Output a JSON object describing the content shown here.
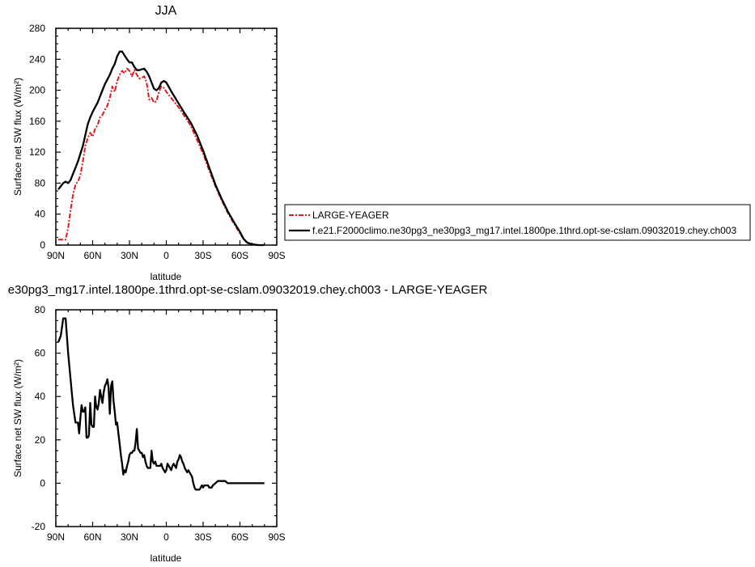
{
  "chart_data": [
    {
      "type": "line",
      "title": "JJA",
      "xlabel": "latitude",
      "ylabel": "Surface net SW flux (W/m²)",
      "xlim": [
        90,
        -90
      ],
      "ylim": [
        0,
        280
      ],
      "x_ticks": [
        90,
        60,
        30,
        0,
        -30,
        -60,
        -90
      ],
      "x_tick_labels": [
        "90N",
        "60N",
        "30N",
        "0",
        "30S",
        "60S",
        "90S"
      ],
      "y_ticks": [
        0,
        40,
        80,
        120,
        160,
        200,
        240,
        280
      ],
      "y_tick_labels": [
        "0",
        "40",
        "80",
        "120",
        "160",
        "200",
        "240",
        "280"
      ],
      "legend_position": "right",
      "series": [
        {
          "name": "LARGE-YEAGER",
          "color": "#e31a1c",
          "dash": "dash-dot",
          "points": [
            [
              88,
              7
            ],
            [
              82,
              7
            ],
            [
              80,
              22
            ],
            [
              78,
              45
            ],
            [
              76,
              65
            ],
            [
              74,
              78
            ],
            [
              72,
              82
            ],
            [
              70,
              90
            ],
            [
              68,
              108
            ],
            [
              66,
              128
            ],
            [
              64,
              138
            ],
            [
              62,
              145
            ],
            [
              60,
              140
            ],
            [
              58,
              150
            ],
            [
              56,
              155
            ],
            [
              54,
              165
            ],
            [
              52,
              168
            ],
            [
              50,
              175
            ],
            [
              48,
              180
            ],
            [
              46,
              190
            ],
            [
              44,
              205
            ],
            [
              42,
              198
            ],
            [
              40,
              212
            ],
            [
              38,
              220
            ],
            [
              36,
              225
            ],
            [
              34,
              222
            ],
            [
              32,
              228
            ],
            [
              30,
              225
            ],
            [
              28,
              218
            ],
            [
              26,
              226
            ],
            [
              24,
              220
            ],
            [
              22,
              215
            ],
            [
              20,
              216
            ],
            [
              18,
              218
            ],
            [
              16,
              210
            ],
            [
              14,
              188
            ],
            [
              12,
              190
            ],
            [
              10,
              184
            ],
            [
              8,
              186
            ],
            [
              6,
              198
            ],
            [
              4,
              205
            ],
            [
              2,
              203
            ],
            [
              0,
              198
            ],
            [
              -5,
              188
            ],
            [
              -10,
              178
            ],
            [
              -15,
              166
            ],
            [
              -20,
              154
            ],
            [
              -25,
              136
            ],
            [
              -30,
              118
            ],
            [
              -35,
              96
            ],
            [
              -40,
              76
            ],
            [
              -45,
              58
            ],
            [
              -50,
              42
            ],
            [
              -55,
              28
            ],
            [
              -60,
              15
            ],
            [
              -63,
              8
            ],
            [
              -66,
              3
            ],
            [
              -70,
              1
            ],
            [
              -75,
              0
            ],
            [
              -80,
              0
            ]
          ]
        },
        {
          "name": "f.e21.F2000climo.ne30pg3_ne30pg3_mg17.intel.1800pe.1thrd.opt-se-cslam.09032019.chey.ch003",
          "color": "#000000",
          "dash": "solid",
          "points": [
            [
              88,
              72
            ],
            [
              86,
              76
            ],
            [
              84,
              80
            ],
            [
              82,
              82
            ],
            [
              80,
              80
            ],
            [
              78,
              84
            ],
            [
              76,
              92
            ],
            [
              74,
              100
            ],
            [
              72,
              108
            ],
            [
              70,
              118
            ],
            [
              68,
              128
            ],
            [
              66,
              142
            ],
            [
              64,
              156
            ],
            [
              62,
              165
            ],
            [
              60,
              172
            ],
            [
              58,
              178
            ],
            [
              56,
              184
            ],
            [
              54,
              192
            ],
            [
              52,
              200
            ],
            [
              50,
              208
            ],
            [
              48,
              214
            ],
            [
              46,
              220
            ],
            [
              44,
              228
            ],
            [
              42,
              234
            ],
            [
              40,
              244
            ],
            [
              38,
              250
            ],
            [
              36,
              250
            ],
            [
              34,
              245
            ],
            [
              32,
              240
            ],
            [
              30,
              236
            ],
            [
              28,
              236
            ],
            [
              26,
              230
            ],
            [
              24,
              226
            ],
            [
              22,
              226
            ],
            [
              20,
              227
            ],
            [
              18,
              228
            ],
            [
              16,
              224
            ],
            [
              14,
              218
            ],
            [
              12,
              210
            ],
            [
              10,
              202
            ],
            [
              8,
              200
            ],
            [
              6,
              203
            ],
            [
              4,
              210
            ],
            [
              2,
              212
            ],
            [
              0,
              210
            ],
            [
              -5,
              196
            ],
            [
              -10,
              183
            ],
            [
              -15,
              170
            ],
            [
              -20,
              158
            ],
            [
              -25,
              142
            ],
            [
              -30,
              122
            ],
            [
              -35,
              100
            ],
            [
              -40,
              78
            ],
            [
              -45,
              60
            ],
            [
              -50,
              44
            ],
            [
              -55,
              30
            ],
            [
              -60,
              17
            ],
            [
              -63,
              8
            ],
            [
              -66,
              3
            ],
            [
              -70,
              1
            ],
            [
              -75,
              0
            ],
            [
              -80,
              0
            ]
          ]
        }
      ]
    },
    {
      "type": "line",
      "title": "e30pg3_mg17.intel.1800pe.1thrd.opt-se-cslam.09032019.chey.ch003 - LARGE-YEAGER",
      "xlabel": "latitude",
      "ylabel": "Surface net SW flux (W/m²)",
      "xlim": [
        90,
        -90
      ],
      "ylim": [
        -20,
        80
      ],
      "x_ticks": [
        90,
        60,
        30,
        0,
        -30,
        -60,
        -90
      ],
      "x_tick_labels": [
        "90N",
        "60N",
        "30N",
        "0",
        "30S",
        "60S",
        "90S"
      ],
      "y_ticks": [
        -20,
        0,
        20,
        40,
        60,
        80
      ],
      "y_tick_labels": [
        "-20",
        "0",
        "20",
        "40",
        "60",
        "80"
      ],
      "series": [
        {
          "color": "#000000",
          "dash": "solid",
          "points": [
            [
              88,
              65
            ],
            [
              86,
              68
            ],
            [
              84,
              76
            ],
            [
              82,
              76
            ],
            [
              80,
              60
            ],
            [
              78,
              48
            ],
            [
              76,
              36
            ],
            [
              74,
              28
            ],
            [
              72,
              28
            ],
            [
              71,
              23
            ],
            [
              70,
              30
            ],
            [
              69,
              36
            ],
            [
              68,
              33
            ],
            [
              67,
              33
            ],
            [
              66,
              35
            ],
            [
              65,
              21
            ],
            [
              64,
              21
            ],
            [
              63,
              22
            ],
            [
              62,
              37
            ],
            [
              61,
              27
            ],
            [
              60,
              26
            ],
            [
              59,
              26
            ],
            [
              58,
              40
            ],
            [
              57,
              35
            ],
            [
              56,
              34
            ],
            [
              55,
              37
            ],
            [
              54,
              43
            ],
            [
              53,
              40
            ],
            [
              52,
              37
            ],
            [
              51,
              42
            ],
            [
              50,
              45
            ],
            [
              49,
              46
            ],
            [
              48,
              48
            ],
            [
              47,
              44
            ],
            [
              46,
              32
            ],
            [
              45,
              45
            ],
            [
              44,
              47
            ],
            [
              43,
              38
            ],
            [
              42,
              33
            ],
            [
              41,
              27
            ],
            [
              40,
              28
            ],
            [
              39,
              23
            ],
            [
              38,
              18
            ],
            [
              37,
              13
            ],
            [
              36,
              9
            ],
            [
              35,
              4
            ],
            [
              34,
              6
            ],
            [
              33,
              5
            ],
            [
              32,
              8
            ],
            [
              31,
              10
            ],
            [
              30,
              13
            ],
            [
              29,
              14
            ],
            [
              28,
              14
            ],
            [
              27,
              15
            ],
            [
              26,
              15
            ],
            [
              25,
              19
            ],
            [
              24,
              25
            ],
            [
              23,
              16
            ],
            [
              22,
              15
            ],
            [
              21,
              14
            ],
            [
              20,
              14
            ],
            [
              19,
              12
            ],
            [
              18,
              13
            ],
            [
              17,
              10
            ],
            [
              16,
              8
            ],
            [
              15,
              7
            ],
            [
              14,
              7
            ],
            [
              13,
              7
            ],
            [
              12,
              15
            ],
            [
              11,
              10
            ],
            [
              10,
              9
            ],
            [
              9,
              10
            ],
            [
              8,
              8
            ],
            [
              7,
              8
            ],
            [
              6,
              8
            ],
            [
              5,
              8
            ],
            [
              4,
              9
            ],
            [
              3,
              7
            ],
            [
              2,
              6
            ],
            [
              1,
              5
            ],
            [
              0,
              6
            ],
            [
              -1,
              9
            ],
            [
              -2,
              8
            ],
            [
              -3,
              7
            ],
            [
              -4,
              6
            ],
            [
              -5,
              8
            ],
            [
              -6,
              9
            ],
            [
              -7,
              8
            ],
            [
              -8,
              7
            ],
            [
              -9,
              10
            ],
            [
              -10,
              11
            ],
            [
              -11,
              13
            ],
            [
              -12,
              12
            ],
            [
              -13,
              10
            ],
            [
              -14,
              9
            ],
            [
              -15,
              7
            ],
            [
              -16,
              6
            ],
            [
              -17,
              5
            ],
            [
              -18,
              6
            ],
            [
              -19,
              5
            ],
            [
              -20,
              4
            ],
            [
              -21,
              3
            ],
            [
              -22,
              0
            ],
            [
              -23,
              -2
            ],
            [
              -24,
              -3
            ],
            [
              -25,
              -3
            ],
            [
              -26,
              -3
            ],
            [
              -27,
              -3
            ],
            [
              -28,
              -2
            ],
            [
              -29,
              -1
            ],
            [
              -30,
              -2
            ],
            [
              -31,
              -1
            ],
            [
              -32,
              -1
            ],
            [
              -33,
              -1
            ],
            [
              -34,
              -1
            ],
            [
              -35,
              -2
            ],
            [
              -36,
              -2
            ],
            [
              -37,
              -2
            ],
            [
              -38,
              -1
            ],
            [
              -40,
              0
            ],
            [
              -42,
              1
            ],
            [
              -44,
              1
            ],
            [
              -46,
              1
            ],
            [
              -48,
              1
            ],
            [
              -50,
              0
            ],
            [
              -52,
              0
            ],
            [
              -55,
              0
            ],
            [
              -60,
              0
            ],
            [
              -65,
              0
            ],
            [
              -70,
              0
            ],
            [
              -75,
              0
            ],
            [
              -80,
              0
            ]
          ]
        }
      ]
    }
  ]
}
